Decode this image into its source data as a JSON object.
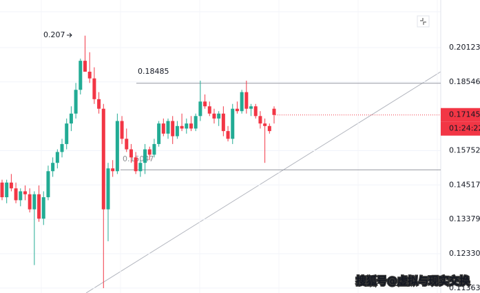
{
  "chart_data": {
    "type": "candlestick",
    "log_scale": true,
    "grid": true,
    "ylim": [
      0.1123,
      0.2253
    ],
    "yticks": [
      0.20123,
      0.18546,
      0.15752,
      0.14517,
      0.13379,
      {
        "value": 0.1233,
        "label": "0.12330"
      },
      0.11363
    ],
    "up_color": "#22ab94",
    "down_color": "#f23645",
    "open": [
      0.146,
      0.141,
      0.146,
      0.144,
      0.14,
      0.143,
      0.142,
      0.137,
      0.142,
      0.134,
      0.141,
      0.15,
      0.153,
      0.157,
      0.16,
      0.168,
      0.172,
      0.182,
      0.195,
      0.19,
      0.187,
      0.178,
      0.174,
      0.137,
      0.151,
      0.15,
      0.169,
      0.162,
      0.158,
      0.155,
      0.15,
      0.153,
      0.158,
      0.156,
      0.16,
      0.168,
      0.164,
      0.169,
      0.163,
      0.167,
      0.166,
      0.168,
      0.166,
      0.171,
      0.177,
      0.175,
      0.172,
      0.17,
      0.172,
      0.165,
      0.162,
      0.174,
      0.173,
      0.181,
      0.174,
      0.175,
      0.171,
      0.168,
      0.167,
      0.174
    ],
    "high": [
      0.147,
      0.147,
      0.149,
      0.146,
      0.144,
      0.145,
      0.144,
      0.143,
      0.145,
      0.143,
      0.152,
      0.155,
      0.158,
      0.162,
      0.17,
      0.175,
      0.185,
      0.196,
      0.207,
      0.199,
      0.192,
      0.181,
      0.176,
      0.153,
      0.154,
      0.172,
      0.171,
      0.166,
      0.16,
      0.157,
      0.154,
      0.16,
      0.159,
      0.162,
      0.169,
      0.17,
      0.17,
      0.171,
      0.169,
      0.172,
      0.17,
      0.171,
      0.172,
      0.186,
      0.18,
      0.177,
      0.174,
      0.173,
      0.175,
      0.167,
      0.176,
      0.177,
      0.182,
      0.186,
      0.176,
      0.176,
      0.173,
      0.17,
      0.168,
      0.175
    ],
    "low": [
      0.14,
      0.139,
      0.143,
      0.139,
      0.138,
      0.14,
      0.136,
      0.12,
      0.133,
      0.132,
      0.14,
      0.148,
      0.151,
      0.155,
      0.158,
      0.165,
      0.17,
      0.18,
      0.19,
      0.185,
      0.176,
      0.172,
      0.1136,
      0.127,
      0.148,
      0.149,
      0.16,
      0.157,
      0.153,
      0.149,
      0.148,
      0.149,
      0.154,
      0.155,
      0.159,
      0.163,
      0.162,
      0.16,
      0.162,
      0.165,
      0.164,
      0.165,
      0.165,
      0.169,
      0.174,
      0.171,
      0.168,
      0.167,
      0.163,
      0.161,
      0.16,
      0.172,
      0.172,
      0.172,
      0.171,
      0.17,
      0.166,
      0.153,
      0.164,
      0.168
    ],
    "close": [
      0.141,
      0.146,
      0.144,
      0.14,
      0.143,
      0.142,
      0.137,
      0.142,
      0.134,
      0.141,
      0.15,
      0.153,
      0.157,
      0.16,
      0.168,
      0.172,
      0.182,
      0.195,
      0.19,
      0.187,
      0.178,
      0.174,
      0.137,
      0.151,
      0.15,
      0.169,
      0.162,
      0.158,
      0.155,
      0.15,
      0.153,
      0.158,
      0.156,
      0.16,
      0.168,
      0.164,
      0.169,
      0.163,
      0.167,
      0.166,
      0.168,
      0.166,
      0.171,
      0.177,
      0.175,
      0.172,
      0.17,
      0.172,
      0.165,
      0.162,
      0.174,
      0.173,
      0.181,
      0.174,
      0.175,
      0.171,
      0.168,
      0.167,
      0.165,
      0.17145
    ],
    "high_label": 0.207,
    "levels": [
      0.18485,
      0.15047
    ],
    "last_price": 0.17145,
    "countdown": "01:24:22",
    "watermark": "搜狐号@虚拟与现实交换"
  }
}
